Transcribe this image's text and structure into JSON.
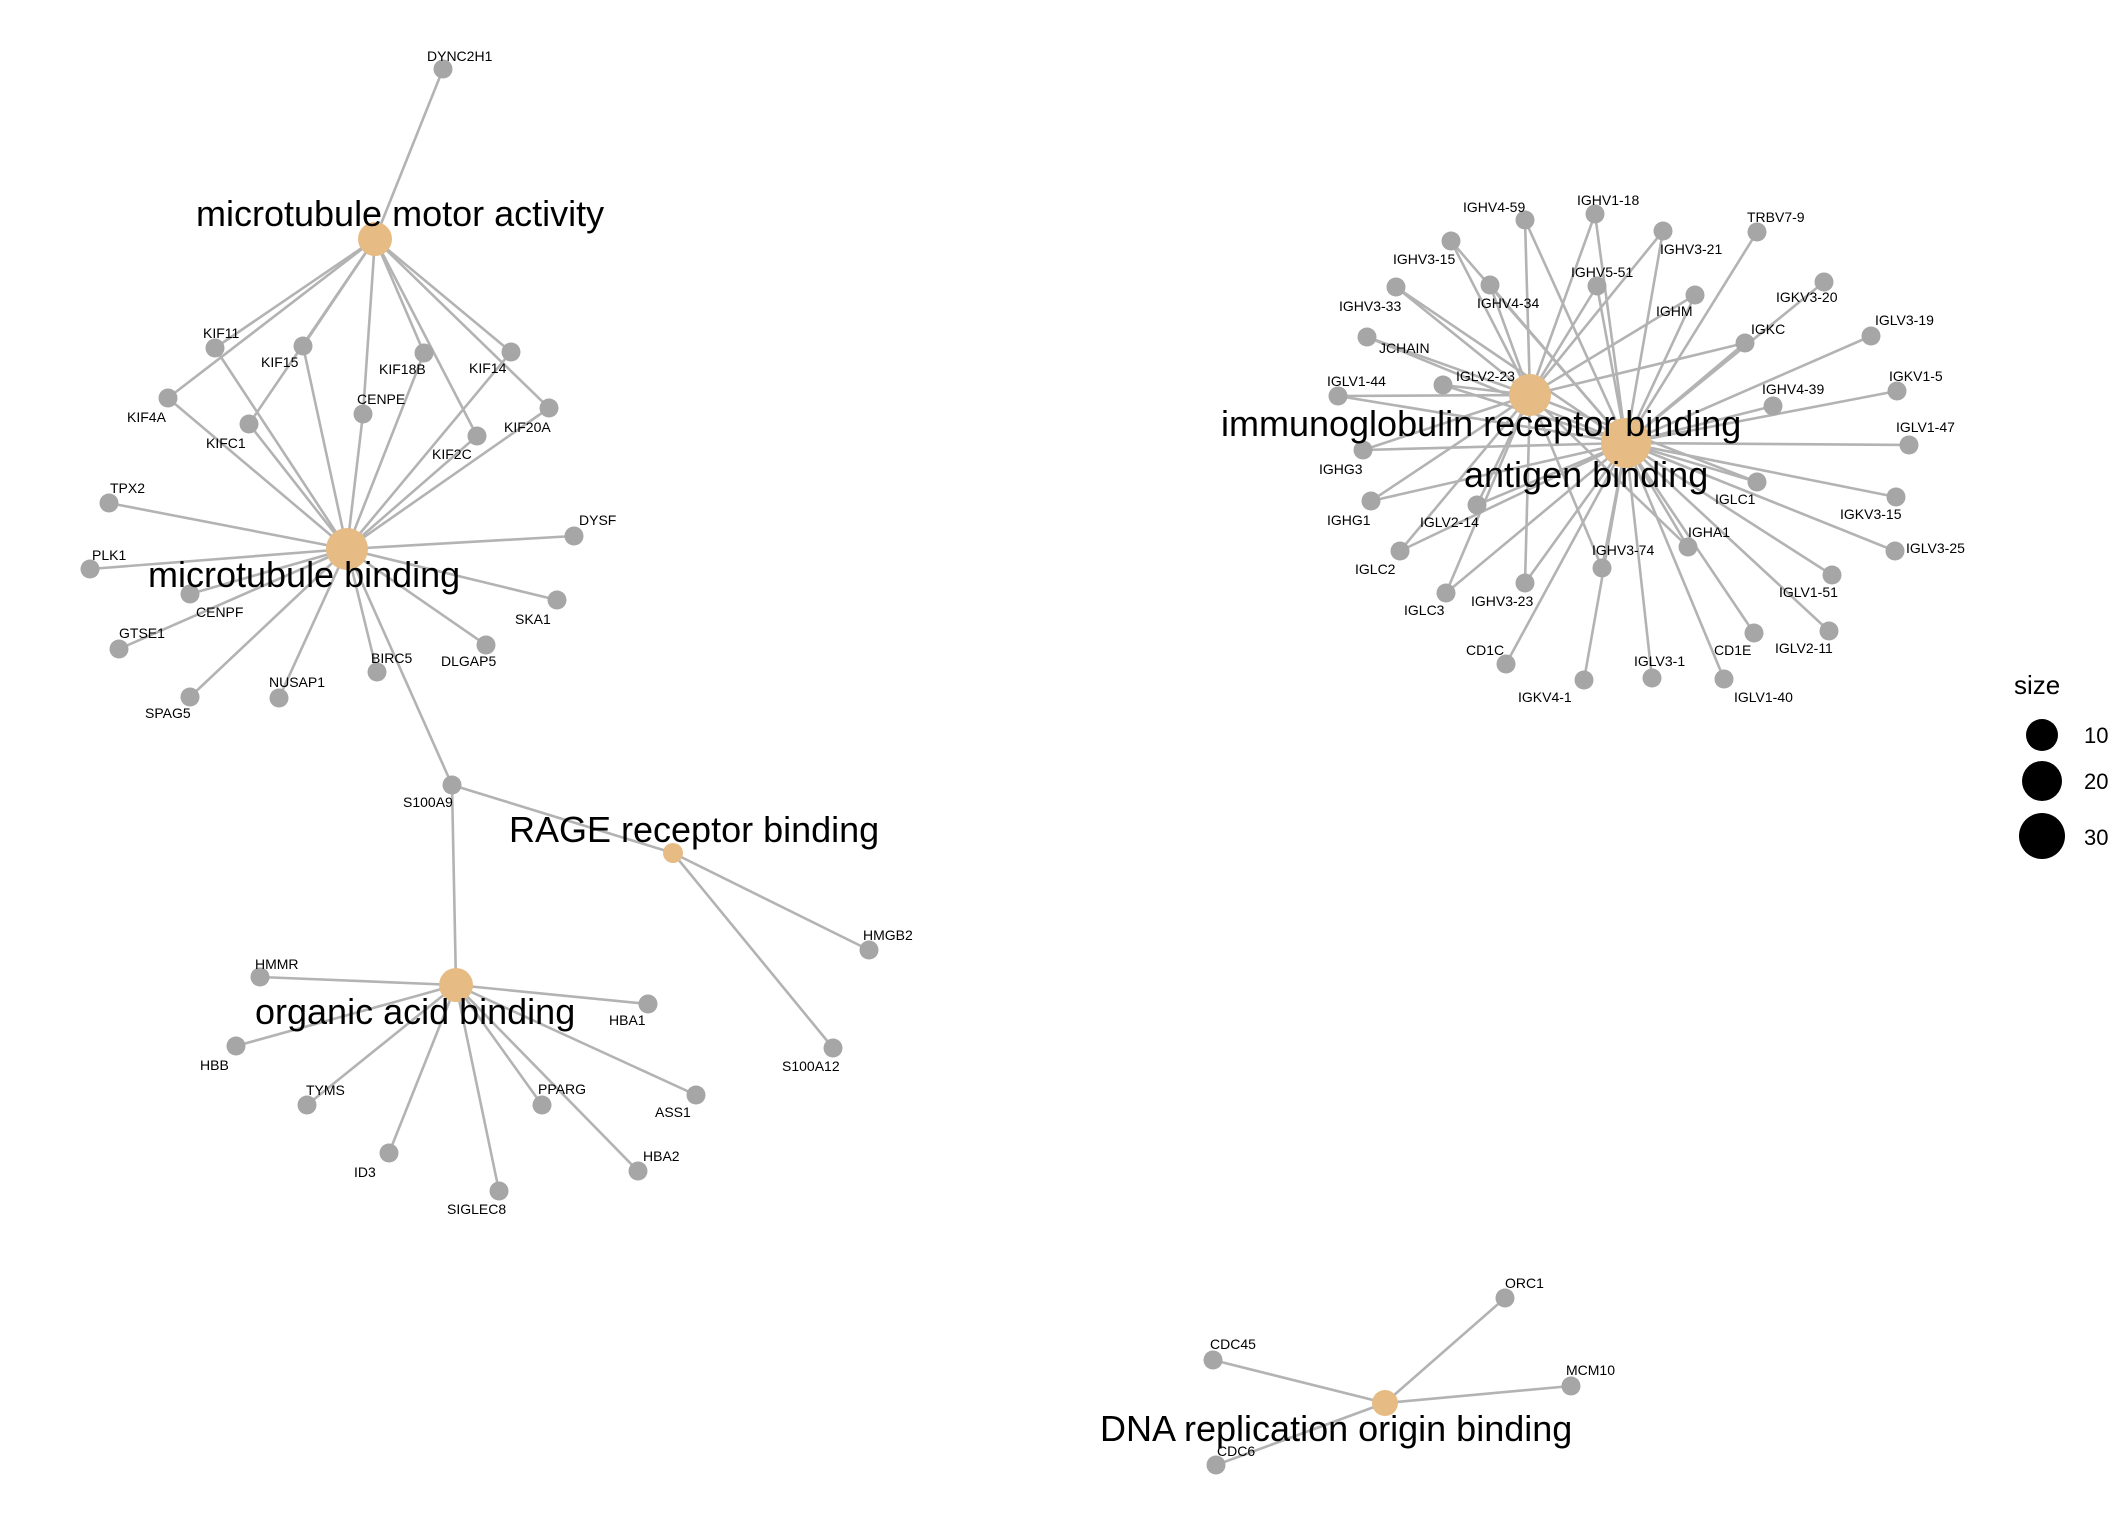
{
  "legend": {
    "title": "size",
    "items": [
      {
        "label": "10",
        "value": 10
      },
      {
        "label": "20",
        "value": 20
      },
      {
        "label": "30",
        "value": 30
      }
    ]
  },
  "colors": {
    "category_node": "#e6bb84",
    "gene_node": "#a6a6a6",
    "edge": "#b3b3b3",
    "text": "#000000"
  },
  "categories": [
    {
      "id": "mma",
      "label": "microtubule motor activity"
    },
    {
      "id": "mb",
      "label": "microtubule binding"
    },
    {
      "id": "rage",
      "label": "RAGE receptor binding"
    },
    {
      "id": "oab",
      "label": "organic acid binding"
    },
    {
      "id": "irb",
      "label": "immunoglobulin receptor binding"
    },
    {
      "id": "ab",
      "label": "antigen binding"
    },
    {
      "id": "dna",
      "label": "DNA replication origin binding"
    }
  ],
  "genes": [
    "DYNC2H1",
    "KIF11",
    "KIF15",
    "KIF18B",
    "KIF14",
    "KIF4A",
    "KIFC1",
    "CENPE",
    "KIF2C",
    "KIF20A",
    "TPX2",
    "PLK1",
    "DYSF",
    "CENPF",
    "GTSE1",
    "SKA1",
    "SPAG5",
    "NUSAP1",
    "BIRC5",
    "DLGAP5",
    "S100A9",
    "HMGB2",
    "S100A12",
    "HMMR",
    "HBA1",
    "HBB",
    "TYMS",
    "PPARG",
    "ASS1",
    "ID3",
    "HBA2",
    "SIGLEC8",
    "IGHV4-59",
    "IGHV1-18",
    "IGHV3-15",
    "IGHV3-21",
    "TRBV7-9",
    "IGHV5-51",
    "IGHV3-33",
    "IGHV4-34",
    "IGHM",
    "IGKV3-20",
    "IGLV3-19",
    "IGKC",
    "JCHAIN",
    "IGLV2-23",
    "IGLV1-44",
    "IGKV1-5",
    "IGHV4-39",
    "IGLV1-47",
    "IGHG3",
    "IGLC1",
    "IGKV3-15",
    "IGHG1",
    "IGLV2-14",
    "IGHA1",
    "IGLV3-25",
    "IGLC2",
    "IGHV3-74",
    "IGLV1-51",
    "IGLC3",
    "IGHV3-23",
    "IGLV2-11",
    "CD1C",
    "CD1E",
    "IGKV4-1",
    "IGLV3-1",
    "IGLV1-40",
    "ORC1",
    "CDC45",
    "MCM10",
    "CDC6"
  ],
  "edges": [
    [
      "mma",
      "DYNC2H1"
    ],
    [
      "mma",
      "KIF11"
    ],
    [
      "mma",
      "KIF15"
    ],
    [
      "mma",
      "KIF18B"
    ],
    [
      "mma",
      "KIF14"
    ],
    [
      "mma",
      "KIF4A"
    ],
    [
      "mma",
      "KIFC1"
    ],
    [
      "mma",
      "CENPE"
    ],
    [
      "mma",
      "KIF2C"
    ],
    [
      "mma",
      "KIF20A"
    ],
    [
      "mb",
      "KIF11"
    ],
    [
      "mb",
      "KIF15"
    ],
    [
      "mb",
      "KIF18B"
    ],
    [
      "mb",
      "KIF14"
    ],
    [
      "mb",
      "KIF4A"
    ],
    [
      "mb",
      "KIFC1"
    ],
    [
      "mb",
      "CENPE"
    ],
    [
      "mb",
      "KIF2C"
    ],
    [
      "mb",
      "KIF20A"
    ],
    [
      "mb",
      "TPX2"
    ],
    [
      "mb",
      "PLK1"
    ],
    [
      "mb",
      "DYSF"
    ],
    [
      "mb",
      "CENPF"
    ],
    [
      "mb",
      "GTSE1"
    ],
    [
      "mb",
      "SKA1"
    ],
    [
      "mb",
      "SPAG5"
    ],
    [
      "mb",
      "NUSAP1"
    ],
    [
      "mb",
      "BIRC5"
    ],
    [
      "mb",
      "DLGAP5"
    ],
    [
      "mb",
      "S100A9"
    ],
    [
      "rage",
      "S100A9"
    ],
    [
      "rage",
      "HMGB2"
    ],
    [
      "rage",
      "S100A12"
    ],
    [
      "oab",
      "S100A9"
    ],
    [
      "oab",
      "HMMR"
    ],
    [
      "oab",
      "HBA1"
    ],
    [
      "oab",
      "HBB"
    ],
    [
      "oab",
      "TYMS"
    ],
    [
      "oab",
      "PPARG"
    ],
    [
      "oab",
      "ASS1"
    ],
    [
      "oab",
      "ID3"
    ],
    [
      "oab",
      "HBA2"
    ],
    [
      "oab",
      "SIGLEC8"
    ],
    [
      "irb",
      "IGHV4-59"
    ],
    [
      "irb",
      "IGHV1-18"
    ],
    [
      "irb",
      "IGHV3-15"
    ],
    [
      "irb",
      "IGHV3-21"
    ],
    [
      "irb",
      "IGHV5-51"
    ],
    [
      "irb",
      "IGHV3-33"
    ],
    [
      "irb",
      "IGHV4-34"
    ],
    [
      "irb",
      "IGHM"
    ],
    [
      "irb",
      "IGKC"
    ],
    [
      "irb",
      "JCHAIN"
    ],
    [
      "irb",
      "IGLV2-23"
    ],
    [
      "irb",
      "IGLV1-44"
    ],
    [
      "irb",
      "IGHG3"
    ],
    [
      "irb",
      "IGHG1"
    ],
    [
      "irb",
      "IGLV2-14"
    ],
    [
      "irb",
      "IGLC2"
    ],
    [
      "irb",
      "IGLC3"
    ],
    [
      "irb",
      "IGHV3-23"
    ],
    [
      "irb",
      "IGHA1"
    ],
    [
      "irb",
      "IGHV3-74"
    ],
    [
      "irb",
      "IGLC1"
    ],
    [
      "ab",
      "IGHV4-59"
    ],
    [
      "ab",
      "IGHV1-18"
    ],
    [
      "ab",
      "IGHV3-15"
    ],
    [
      "ab",
      "IGHV3-21"
    ],
    [
      "ab",
      "TRBV7-9"
    ],
    [
      "ab",
      "IGHV5-51"
    ],
    [
      "ab",
      "IGHV3-33"
    ],
    [
      "ab",
      "IGHV4-34"
    ],
    [
      "ab",
      "IGHM"
    ],
    [
      "ab",
      "IGKV3-20"
    ],
    [
      "ab",
      "IGLV3-19"
    ],
    [
      "ab",
      "IGKC"
    ],
    [
      "ab",
      "JCHAIN"
    ],
    [
      "ab",
      "IGLV2-23"
    ],
    [
      "ab",
      "IGLV1-44"
    ],
    [
      "ab",
      "IGKV1-5"
    ],
    [
      "ab",
      "IGHV4-39"
    ],
    [
      "ab",
      "IGLV1-47"
    ],
    [
      "ab",
      "IGHG3"
    ],
    [
      "ab",
      "IGLC1"
    ],
    [
      "ab",
      "IGKV3-15"
    ],
    [
      "ab",
      "IGHG1"
    ],
    [
      "ab",
      "IGLV2-14"
    ],
    [
      "ab",
      "IGHA1"
    ],
    [
      "ab",
      "IGLV3-25"
    ],
    [
      "ab",
      "IGLC2"
    ],
    [
      "ab",
      "IGHV3-74"
    ],
    [
      "ab",
      "IGLV1-51"
    ],
    [
      "ab",
      "IGLC3"
    ],
    [
      "ab",
      "IGHV3-23"
    ],
    [
      "ab",
      "IGLV2-11"
    ],
    [
      "ab",
      "CD1C"
    ],
    [
      "ab",
      "CD1E"
    ],
    [
      "ab",
      "IGKV4-1"
    ],
    [
      "ab",
      "IGLV3-1"
    ],
    [
      "ab",
      "IGLV1-40"
    ],
    [
      "dna",
      "ORC1"
    ],
    [
      "dna",
      "CDC45"
    ],
    [
      "dna",
      "MCM10"
    ],
    [
      "dna",
      "CDC6"
    ]
  ]
}
